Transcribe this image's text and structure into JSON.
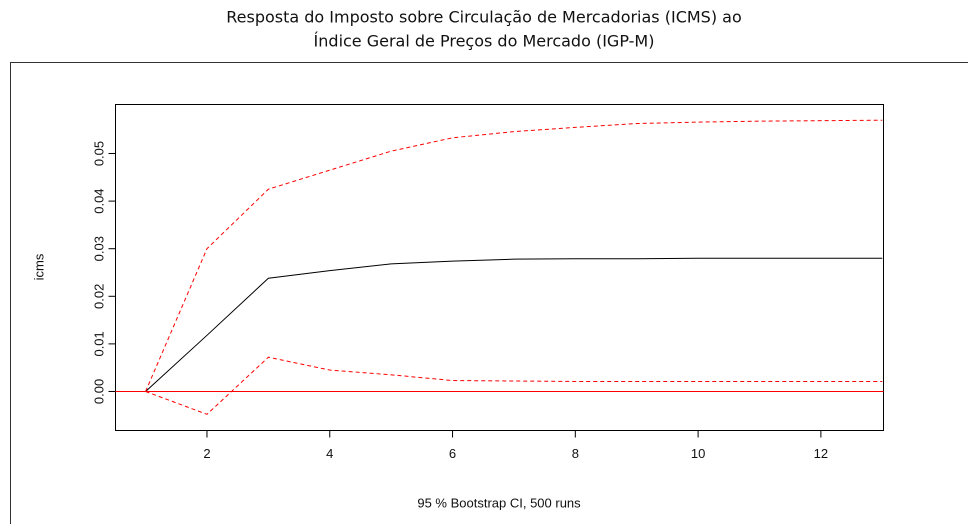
{
  "chart_data": {
    "type": "line",
    "title": [
      "Resposta do Imposto sobre Circulação de Mercadorias (ICMS) ao",
      "Índice Geral de Preços do Mercado (IGP-M)"
    ],
    "y_label": "icms",
    "x_label": "95 % Bootstrap CI,  500 runs",
    "x": [
      1,
      2,
      3,
      4,
      5,
      6,
      7,
      8,
      9,
      10,
      11,
      12,
      13
    ],
    "series": [
      {
        "color": "#000000",
        "style": "solid",
        "values": [
          0,
          0.0118,
          0.0238,
          0.0254,
          0.0268,
          0.0274,
          0.0278,
          0.0279,
          0.0279,
          0.028,
          0.028,
          0.028,
          0.028
        ]
      },
      {
        "color": "#ff0000",
        "style": "dashed",
        "values": [
          0,
          0.03,
          0.0425,
          0.0465,
          0.0505,
          0.0533,
          0.0546,
          0.0555,
          0.0563,
          0.0566,
          0.0568,
          0.0569,
          0.057
        ]
      },
      {
        "color": "#ff0000",
        "style": "dashed",
        "values": [
          0,
          -0.0048,
          0.0072,
          0.0045,
          0.0035,
          0.0023,
          0.0022,
          0.0021,
          0.0021,
          0.0021,
          0.0021,
          0.0021,
          0.0021
        ]
      }
    ],
    "hline": {
      "value": 0,
      "color": "#ff0000"
    },
    "xlim": [
      0.51,
      13.02
    ],
    "ylim": [
      -0.0082,
      0.0603
    ],
    "xticks": [
      2,
      4,
      6,
      8,
      10,
      12
    ],
    "yticks": [
      {
        "value": 0,
        "label": "0.00"
      },
      0.01,
      0.02,
      0.03,
      0.04,
      0.05
    ]
  }
}
